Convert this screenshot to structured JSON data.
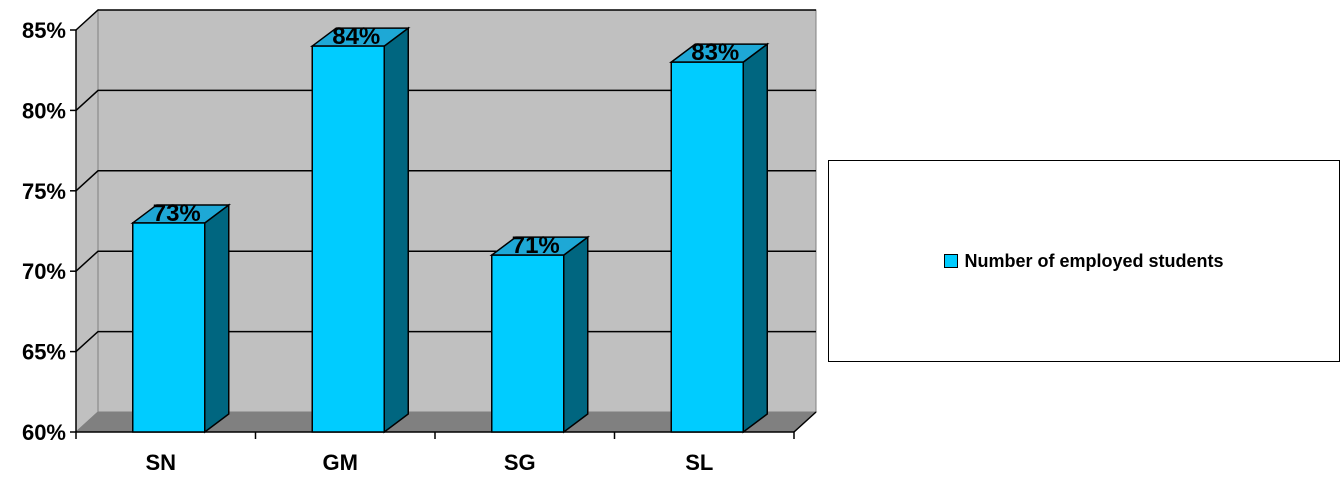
{
  "chart_data": {
    "type": "bar",
    "categories": [
      "SN",
      "GM",
      "SG",
      "SL"
    ],
    "series": [
      {
        "name": "Number of employed students",
        "values": [
          73,
          84,
          71,
          83
        ]
      }
    ],
    "data_labels": [
      "73%",
      "84%",
      "71%",
      "83%"
    ],
    "y_ticks": [
      "60%",
      "65%",
      "70%",
      "75%",
      "80%",
      "85%"
    ],
    "ylim": [
      60,
      85
    ],
    "grid": true,
    "legend": "right",
    "colors": {
      "bar_front": "#00CCFF",
      "bar_side": "#006680",
      "bar_top": "#1EA8D6",
      "wall": "#C0C0C0",
      "floor": "#808080"
    }
  }
}
